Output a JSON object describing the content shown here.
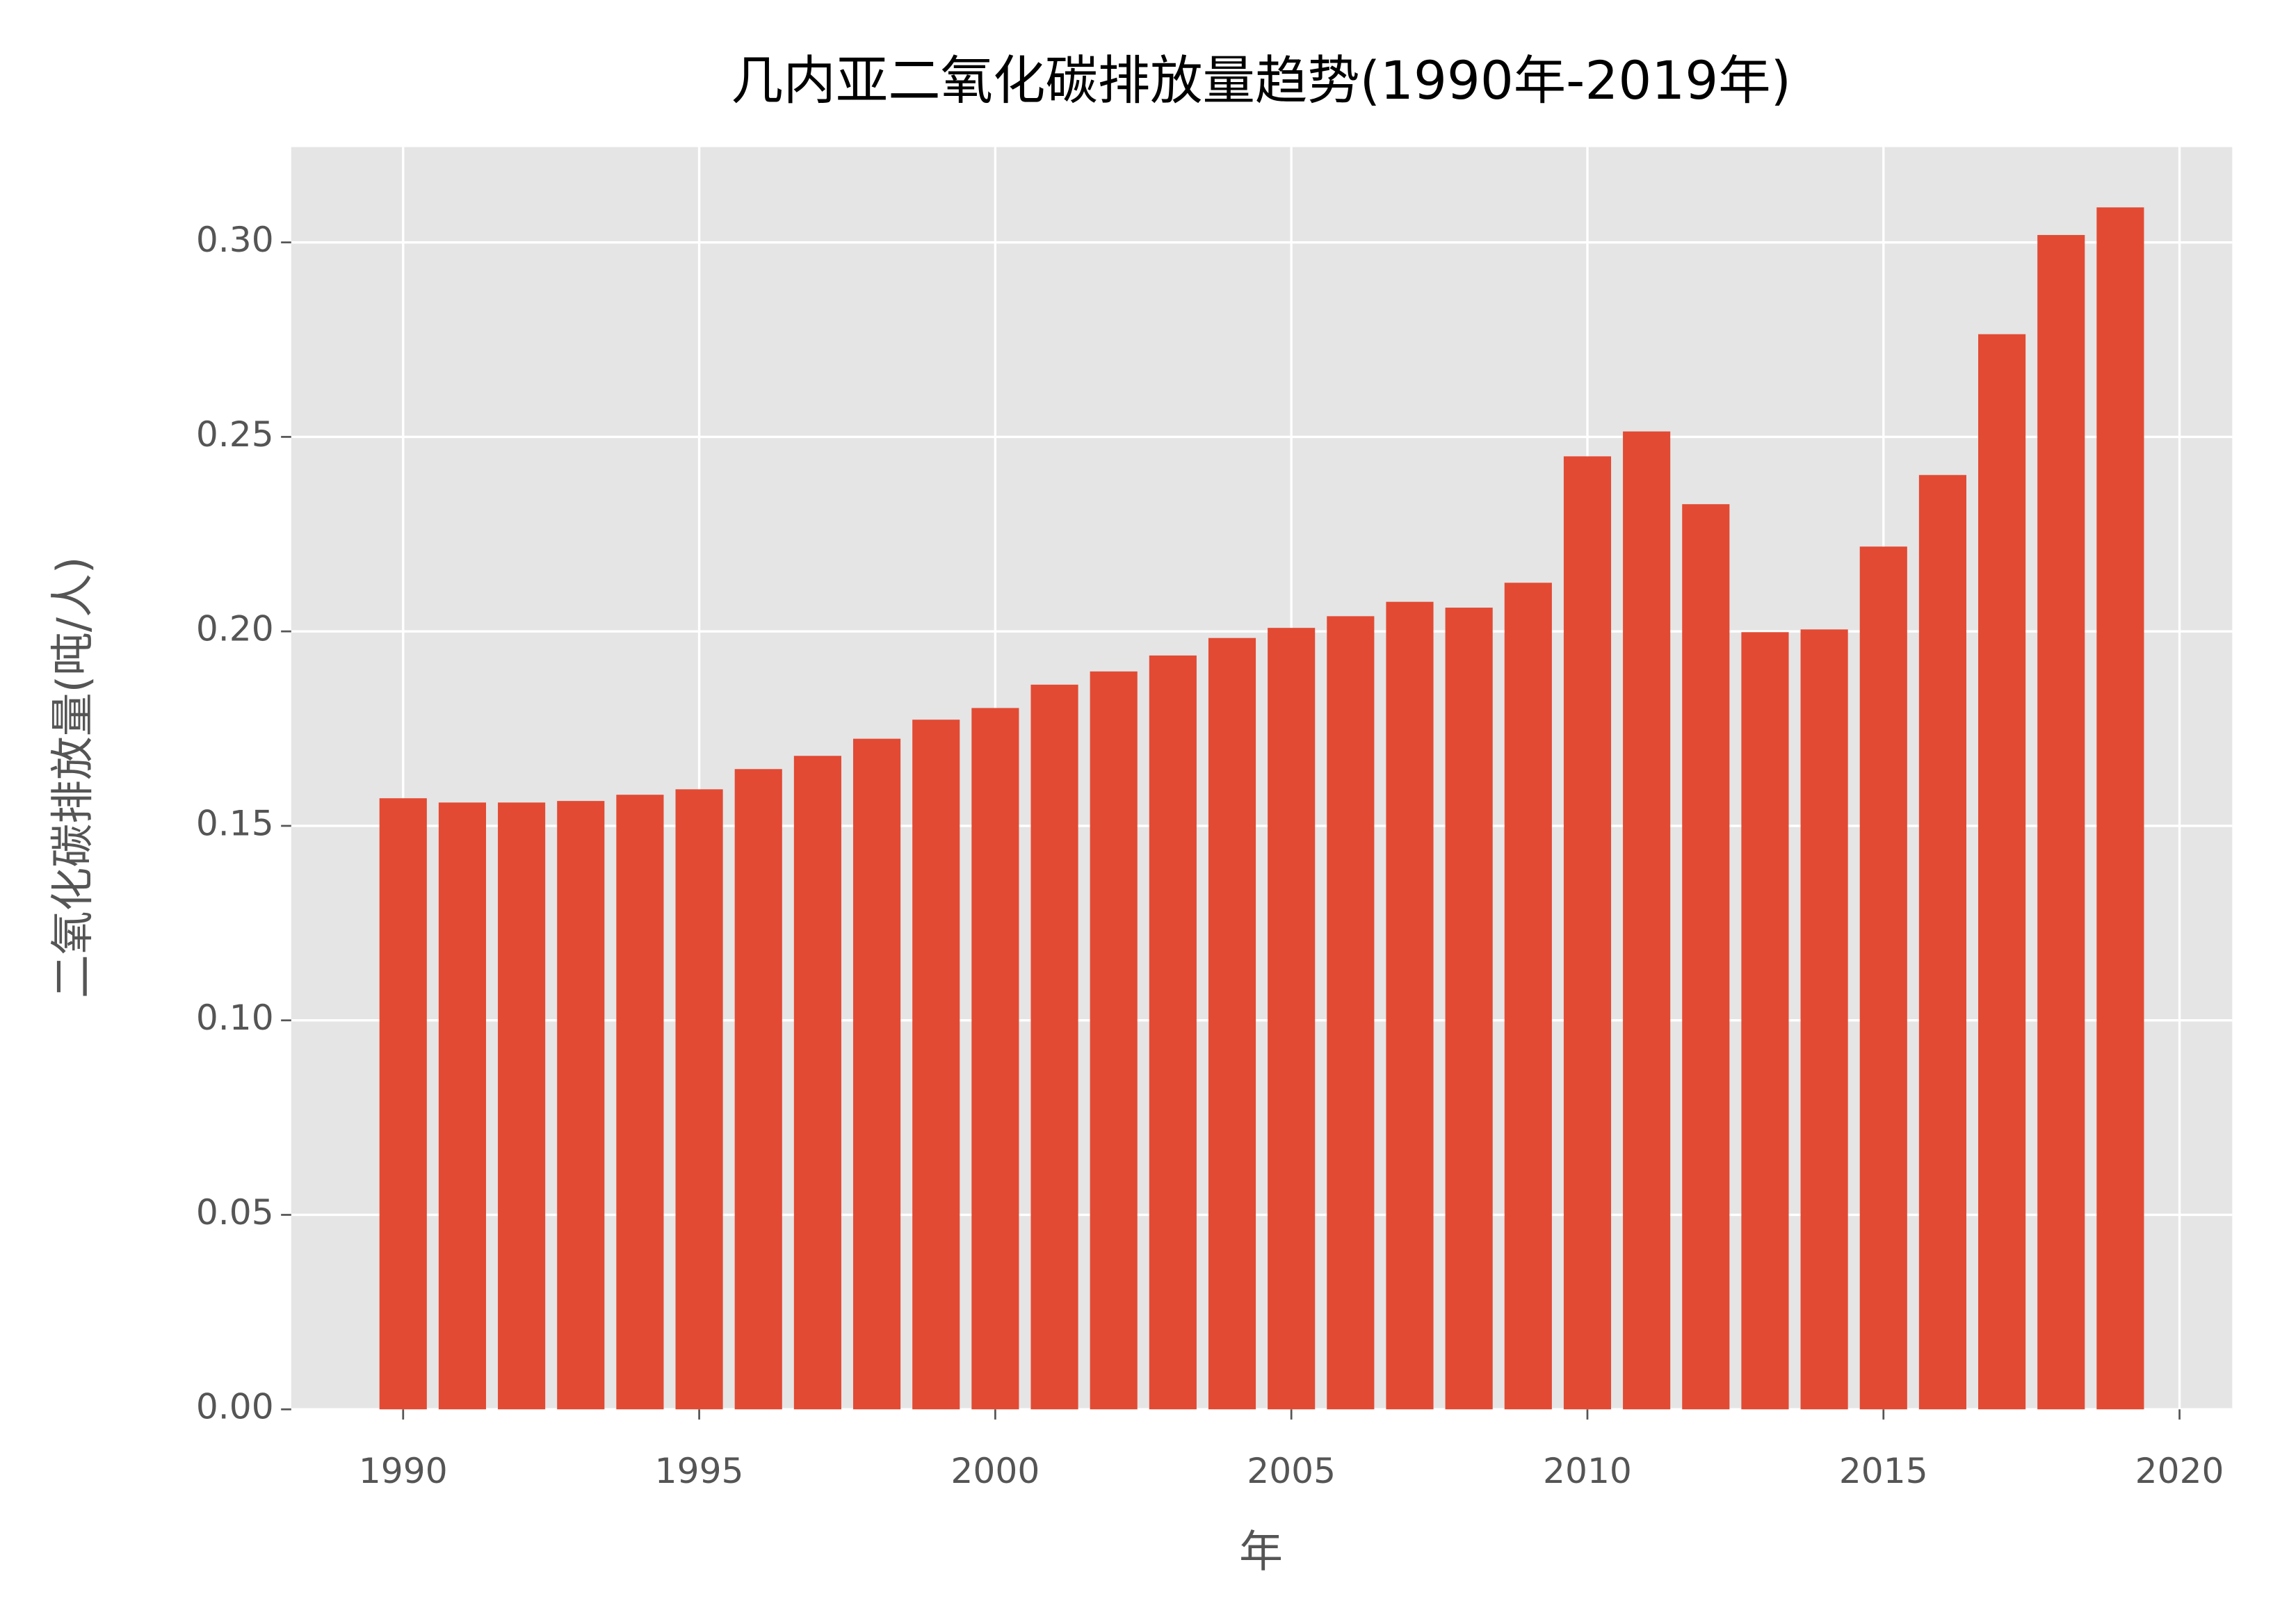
{
  "chart_data": {
    "type": "bar",
    "title": "几内亚二氧化碳排放量趋势(1990年-2019年)",
    "x_label": "年",
    "y_label": "二氧化碳排放量(吨/人)",
    "x": [
      1990,
      1991,
      1992,
      1993,
      1994,
      1995,
      1996,
      1997,
      1998,
      1999,
      2000,
      2001,
      2002,
      2003,
      2004,
      2005,
      2006,
      2007,
      2008,
      2009,
      2010,
      2011,
      2012,
      2013,
      2014,
      2015,
      2016,
      2017,
      2018,
      2019
    ],
    "values": [
      0.1571,
      0.156,
      0.156,
      0.1564,
      0.158,
      0.1594,
      0.1646,
      0.168,
      0.1724,
      0.1773,
      0.1803,
      0.1863,
      0.1897,
      0.1938,
      0.1983,
      0.2009,
      0.2039,
      0.2076,
      0.2061,
      0.2125,
      0.245,
      0.2514,
      0.2327,
      0.1998,
      0.2005,
      0.2218,
      0.2402,
      0.2764,
      0.3019,
      0.309
    ],
    "color": "#e24a33",
    "xlim": [
      1988.11,
      2020.89
    ],
    "xticks": [
      1990,
      1995,
      2000,
      2005,
      2010,
      2015,
      2020
    ],
    "ylim": [
      0,
      0.3245
    ],
    "yticks": [
      {
        "value": 0,
        "label": "0.00"
      },
      {
        "value": 0.05,
        "label": "0.05"
      },
      {
        "value": 0.1,
        "label": "0.10"
      },
      {
        "value": 0.15,
        "label": "0.15"
      },
      {
        "value": 0.2,
        "label": "0.20"
      },
      {
        "value": 0.25,
        "label": "0.25"
      },
      {
        "value": 0.3,
        "label": "0.30"
      }
    ],
    "grid": true
  }
}
